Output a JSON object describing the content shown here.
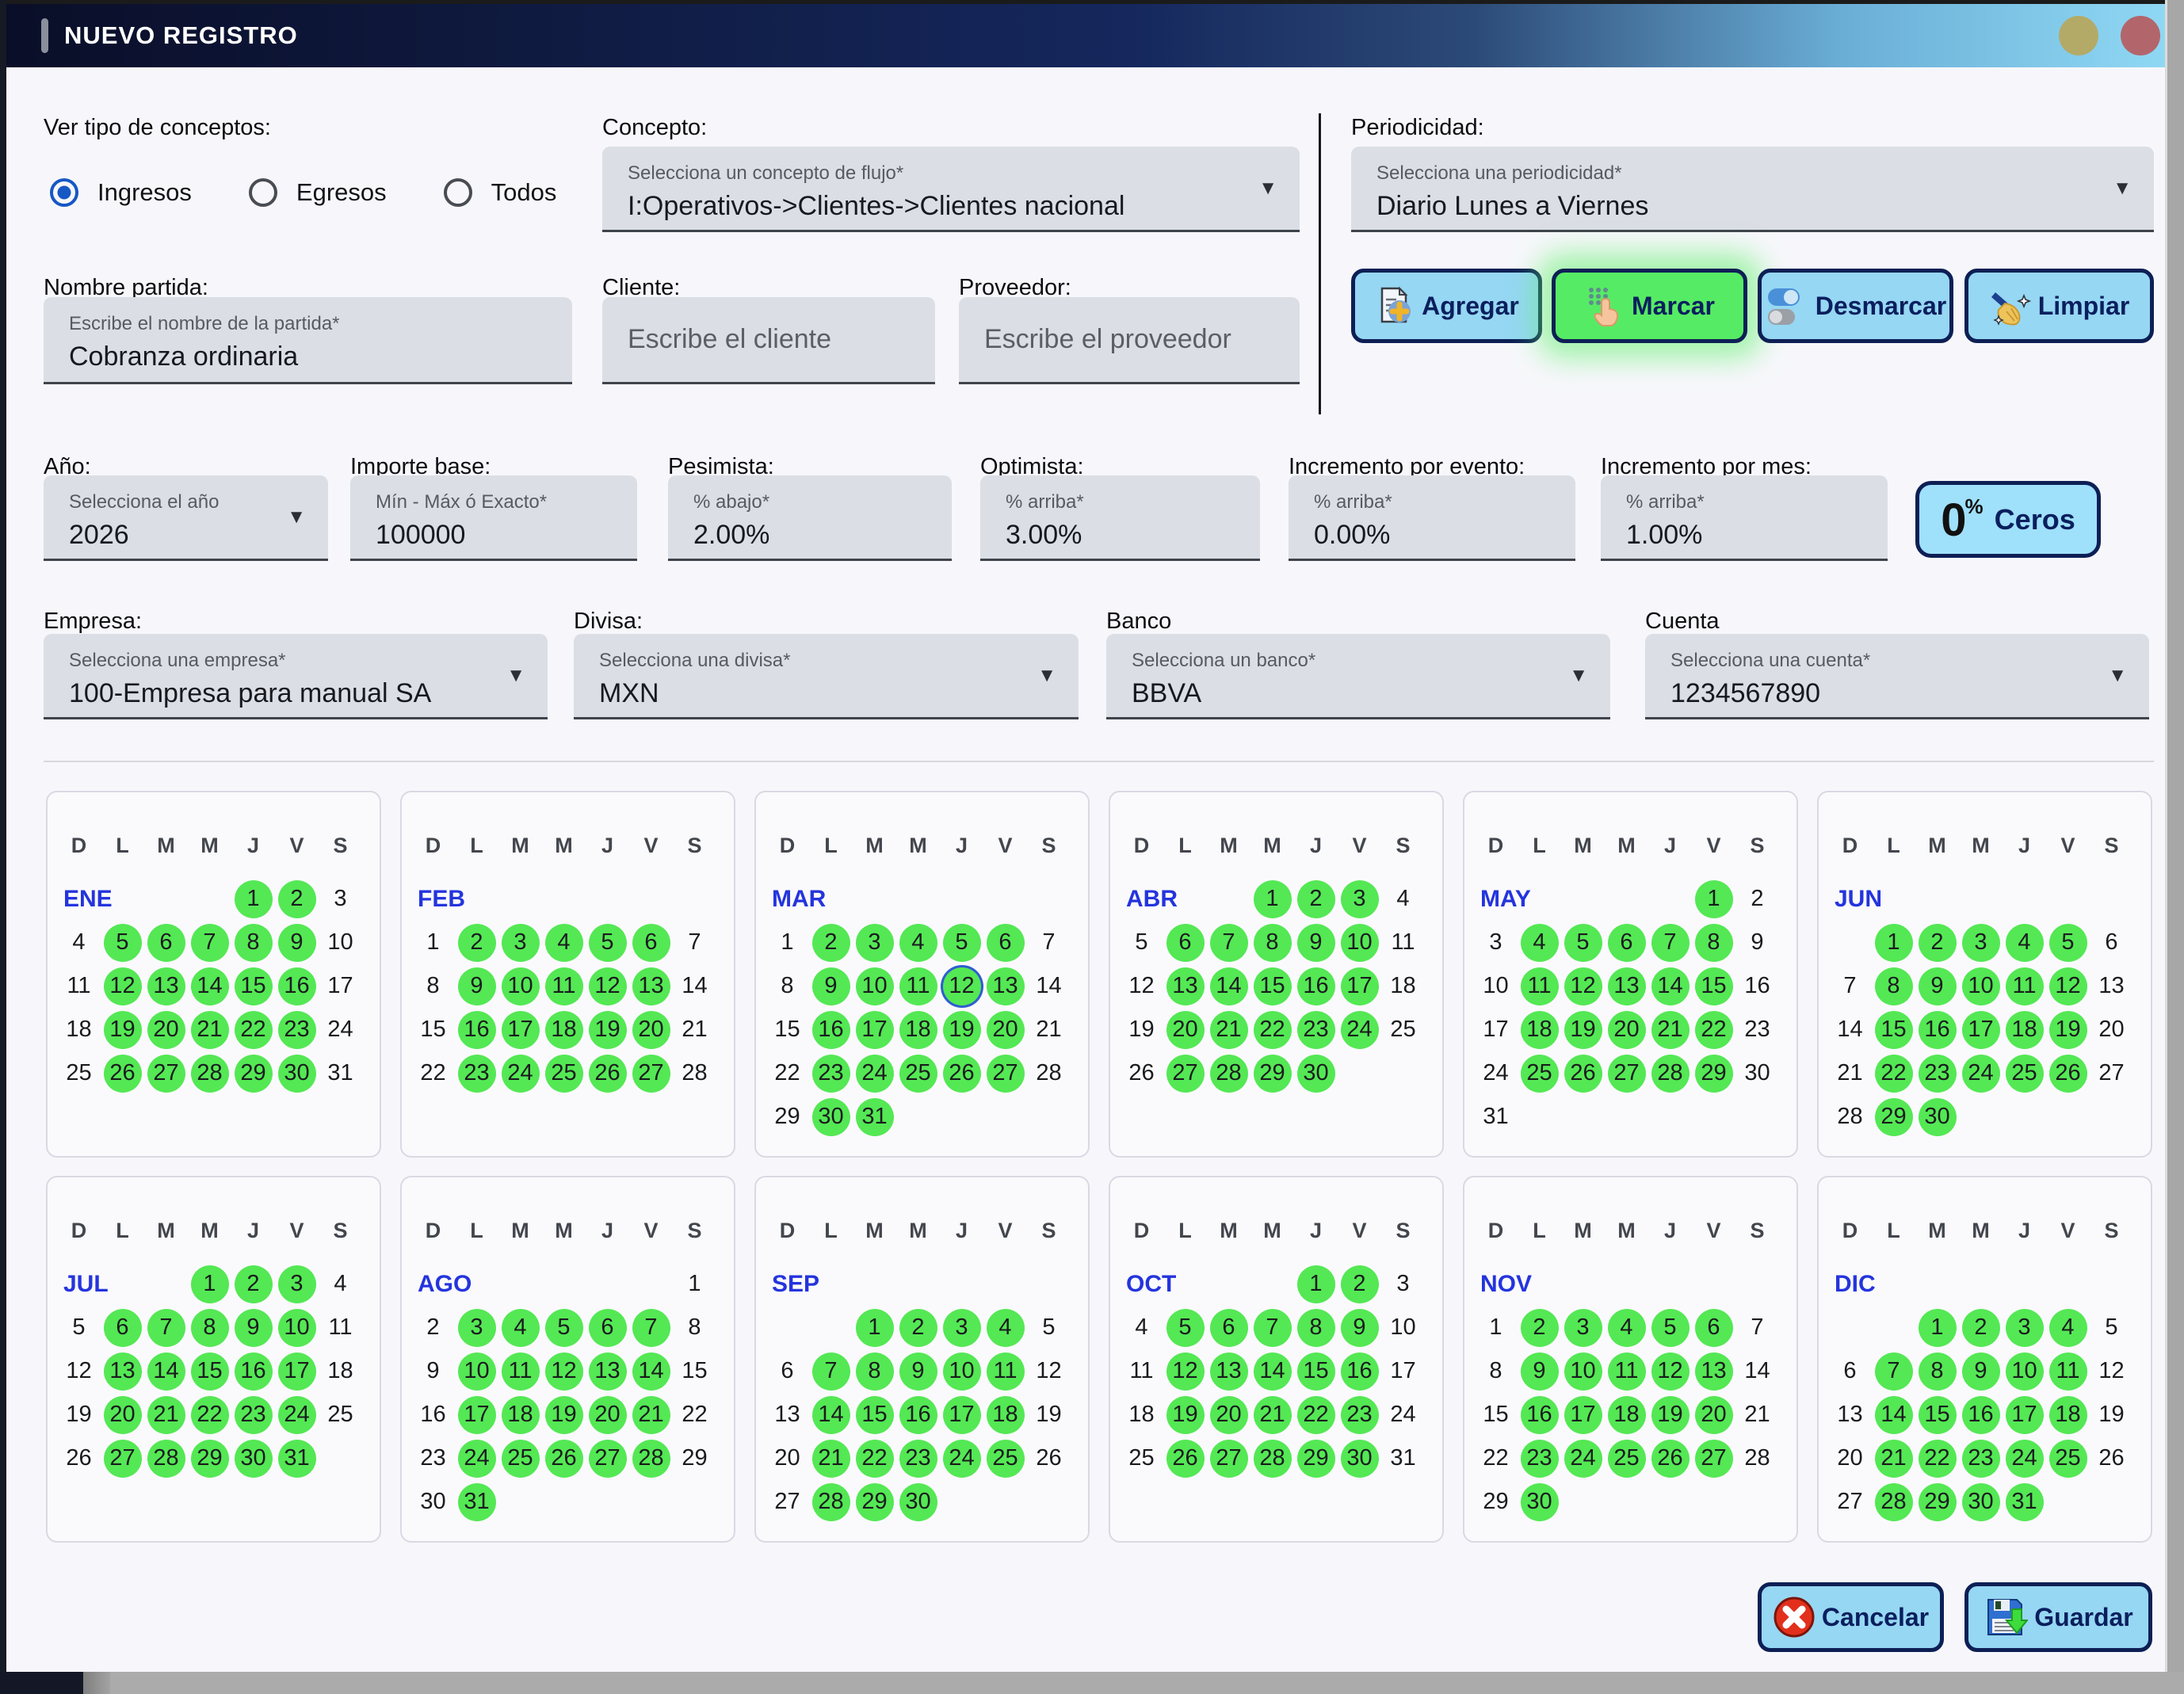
{
  "window": {
    "title": "NUEVO REGISTRO"
  },
  "colors": {
    "accent_green": "#54e854",
    "button_blue": "#96d7f3",
    "navy": "#0d1f55",
    "month_blue": "#2434dd",
    "today_ring": "#2e5ed0",
    "titlebar_dark": "#0a0e28",
    "titlebar_light": "#8fd8f4"
  },
  "form": {
    "concept_type": {
      "label": "Ver tipo de conceptos:",
      "options": [
        {
          "label": "Ingresos",
          "selected": true
        },
        {
          "label": "Egresos",
          "selected": false
        },
        {
          "label": "Todos",
          "selected": false
        }
      ]
    },
    "concepto": {
      "label": "Concepto:",
      "floating_label": "Selecciona un concepto de flujo*",
      "value": "I:Operativos->Clientes->Clientes nacional"
    },
    "periodicidad": {
      "label": "Periodicidad:",
      "floating_label": "Selecciona una periodicidad*",
      "value": "Diario Lunes a Viernes"
    },
    "nombre_partida": {
      "label": "Nombre partida:",
      "floating_label": "Escribe el nombre de la partida*",
      "value": "Cobranza ordinaria"
    },
    "cliente": {
      "label": "Cliente:",
      "placeholder": "Escribe el cliente"
    },
    "proveedor": {
      "label": "Proveedor:",
      "placeholder": "Escribe el proveedor"
    },
    "actions": {
      "agregar": "Agregar",
      "marcar": "Marcar",
      "desmarcar": "Desmarcar",
      "limpiar": "Limpiar"
    },
    "anio": {
      "label": "Año:",
      "floating_label": "Selecciona el año",
      "value": "2026"
    },
    "importe_base": {
      "label": "Importe base:",
      "floating_label": "Mín - Máx ó Exacto*",
      "value": "100000"
    },
    "pesimista": {
      "label": "Pesimista:",
      "floating_label": "% abajo*",
      "value": "2.00%"
    },
    "optimista": {
      "label": "Optimista:",
      "floating_label": "% arriba*",
      "value": "3.00%"
    },
    "incremento_evento": {
      "label": "Incremento por evento:",
      "floating_label": "% arriba*",
      "value": "0.00%"
    },
    "incremento_mes": {
      "label": "Incremento por mes:",
      "floating_label": "% arriba*",
      "value": "1.00%"
    },
    "ceros": {
      "icon_zero": "0",
      "icon_pct": "%",
      "label": "Ceros"
    },
    "empresa": {
      "label": "Empresa:",
      "floating_label": "Selecciona una empresa*",
      "value": "100-Empresa para manual SA"
    },
    "divisa": {
      "label": "Divisa:",
      "floating_label": "Selecciona una divisa*",
      "value": "MXN"
    },
    "banco": {
      "label": "Banco",
      "floating_label": "Selecciona un banco*",
      "value": "BBVA"
    },
    "cuenta": {
      "label": "Cuenta",
      "floating_label": "Selecciona una cuenta*",
      "value": "1234567890"
    }
  },
  "calendar": {
    "year": "2026",
    "weekday_headers": [
      "D",
      "L",
      "M",
      "M",
      "J",
      "V",
      "S"
    ],
    "months": [
      {
        "name": "ENE",
        "first_dow": 4,
        "days": 31,
        "marked": [
          1,
          2,
          5,
          6,
          7,
          8,
          9,
          12,
          13,
          14,
          15,
          16,
          19,
          20,
          21,
          22,
          23,
          26,
          27,
          28,
          29,
          30
        ]
      },
      {
        "name": "FEB",
        "first_dow": 0,
        "days": 28,
        "marked": [
          2,
          3,
          4,
          5,
          6,
          9,
          10,
          11,
          12,
          13,
          16,
          17,
          18,
          19,
          20,
          23,
          24,
          25,
          26,
          27
        ]
      },
      {
        "name": "MAR",
        "first_dow": 0,
        "days": 31,
        "today": 12,
        "marked": [
          2,
          3,
          4,
          5,
          6,
          9,
          10,
          11,
          12,
          13,
          16,
          17,
          18,
          19,
          20,
          23,
          24,
          25,
          26,
          27,
          30,
          31
        ]
      },
      {
        "name": "ABR",
        "first_dow": 3,
        "days": 30,
        "marked": [
          1,
          2,
          3,
          6,
          7,
          8,
          9,
          10,
          13,
          14,
          15,
          16,
          17,
          20,
          21,
          22,
          23,
          24,
          27,
          28,
          29,
          30
        ]
      },
      {
        "name": "MAY",
        "first_dow": 5,
        "days": 31,
        "marked": [
          1,
          4,
          5,
          6,
          7,
          8,
          11,
          12,
          13,
          14,
          15,
          18,
          19,
          20,
          21,
          22,
          25,
          26,
          27,
          28,
          29
        ]
      },
      {
        "name": "JUN",
        "first_dow": 1,
        "days": 30,
        "marked": [
          1,
          2,
          3,
          4,
          5,
          8,
          9,
          10,
          11,
          12,
          15,
          16,
          17,
          18,
          19,
          22,
          23,
          24,
          25,
          26,
          29,
          30
        ]
      },
      {
        "name": "JUL",
        "first_dow": 3,
        "days": 31,
        "marked": [
          1,
          2,
          3,
          6,
          7,
          8,
          9,
          10,
          13,
          14,
          15,
          16,
          17,
          20,
          21,
          22,
          23,
          24,
          27,
          28,
          29,
          30,
          31
        ]
      },
      {
        "name": "AGO",
        "first_dow": 6,
        "days": 31,
        "marked": [
          3,
          4,
          5,
          6,
          7,
          10,
          11,
          12,
          13,
          14,
          17,
          18,
          19,
          20,
          21,
          24,
          25,
          26,
          27,
          28,
          31
        ]
      },
      {
        "name": "SEP",
        "first_dow": 2,
        "days": 30,
        "marked": [
          1,
          2,
          3,
          4,
          7,
          8,
          9,
          10,
          11,
          14,
          15,
          16,
          17,
          18,
          21,
          22,
          23,
          24,
          25,
          28,
          29,
          30
        ]
      },
      {
        "name": "OCT",
        "first_dow": 4,
        "days": 31,
        "marked": [
          1,
          2,
          5,
          6,
          7,
          8,
          9,
          12,
          13,
          14,
          15,
          16,
          19,
          20,
          21,
          22,
          23,
          26,
          27,
          28,
          29,
          30
        ]
      },
      {
        "name": "NOV",
        "first_dow": 0,
        "days": 30,
        "marked": [
          2,
          3,
          4,
          5,
          6,
          9,
          10,
          11,
          12,
          13,
          16,
          17,
          18,
          19,
          20,
          23,
          24,
          25,
          26,
          27,
          30
        ]
      },
      {
        "name": "DIC",
        "first_dow": 2,
        "days": 31,
        "marked": [
          1,
          2,
          3,
          4,
          7,
          8,
          9,
          10,
          11,
          14,
          15,
          16,
          17,
          18,
          21,
          22,
          23,
          24,
          25,
          28,
          29,
          30,
          31
        ]
      }
    ]
  },
  "footer": {
    "cancelar": "Cancelar",
    "guardar": "Guardar"
  }
}
